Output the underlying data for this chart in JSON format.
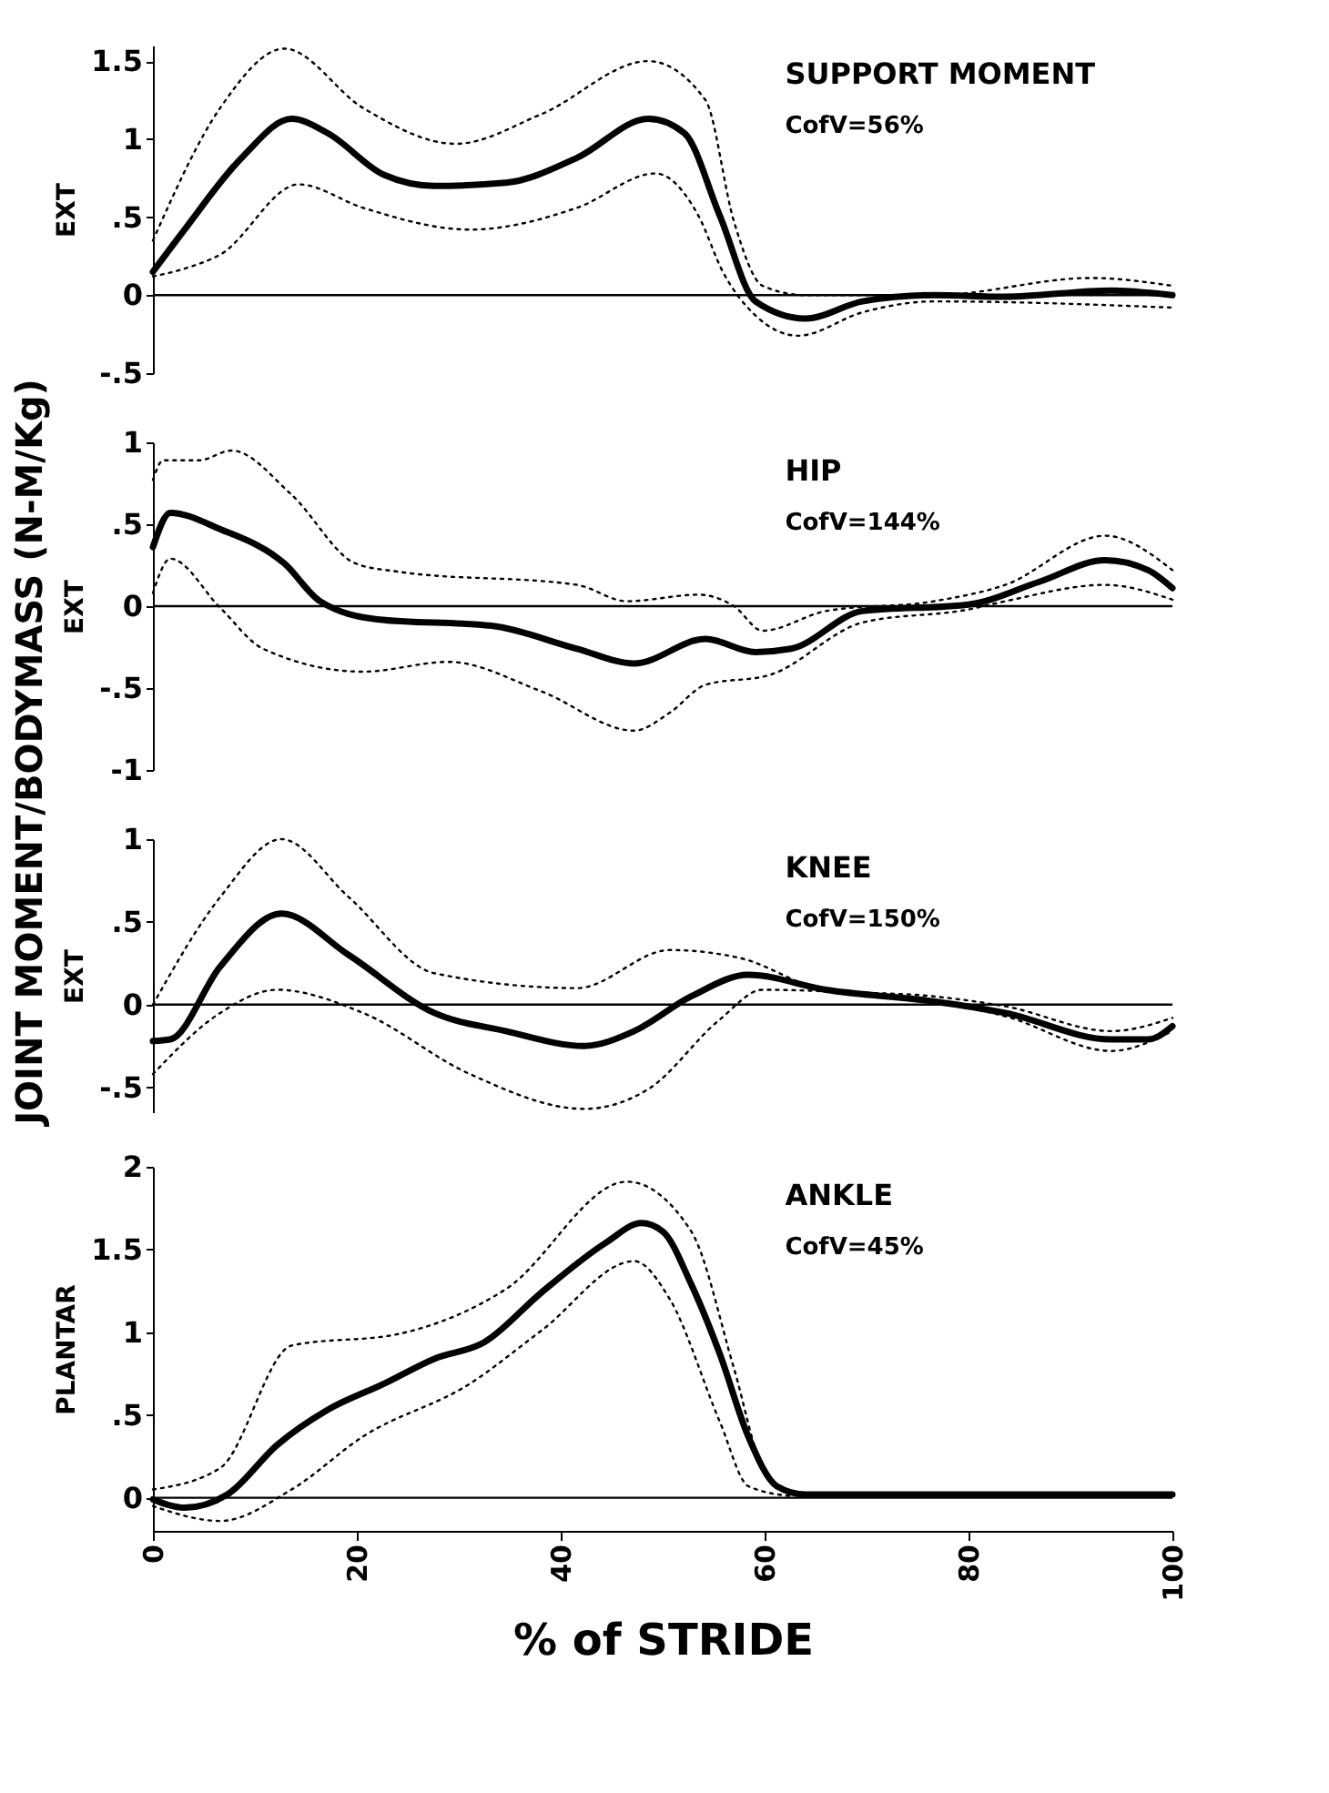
{
  "chart_data": [
    {
      "type": "line",
      "ylabel": "EXT",
      "annotations": [
        "SUPPORT MOMENT",
        "CofV=56%",
        "JOINT MOMENT/BODYMASS (N-M/Kg)"
      ],
      "xlim": [
        0,
        100
      ],
      "xticks": [
        0,
        20,
        40,
        60,
        80,
        100
      ],
      "ylim": [
        -0.5,
        1.6
      ],
      "yticks": [
        {
          "value": -0.5,
          "label": "-.5"
        },
        0,
        {
          "value": 0.5,
          "label": ".5"
        },
        1,
        1.5
      ],
      "tick_labels": "y",
      "grid": false,
      "ref_lines": [
        {
          "axis": "y",
          "value": 0,
          "color": "#000000"
        }
      ],
      "series": [
        {
          "color": "#000000",
          "line_style": "solid",
          "x": [
            0,
            3.1,
            8.7,
            13.6,
            17.1,
            22.7,
            27.6,
            34.6,
            41.6,
            48.6,
            52.1,
            55.6,
            59.1,
            64,
            69.6,
            76.6,
            83.6,
            94,
            100
          ],
          "values": [
            0.15,
            0.42,
            0.88,
            1.13,
            1.04,
            0.77,
            0.7,
            0.72,
            0.88,
            1.13,
            1.04,
            0.51,
            -0.04,
            -0.15,
            -0.04,
            0,
            -0.01,
            0.03,
            0
          ]
        },
        {
          "color": "#000000",
          "line_style": "dotted",
          "x": [
            0,
            6.6,
            12.9,
            20.6,
            29.7,
            38.1,
            48.6,
            54.2,
            57,
            59.8,
            64,
            76.6,
            92,
            100
          ],
          "values": [
            0.35,
            1.2,
            1.58,
            1.2,
            0.97,
            1.16,
            1.5,
            1.25,
            0.47,
            0.06,
            0,
            0,
            0.11,
            0.06
          ]
        },
        {
          "color": "#000000",
          "line_style": "dotted",
          "x": [
            0,
            3.1,
            6.6,
            14.3,
            20.6,
            31.1,
            41.6,
            49.3,
            53.5,
            55.9,
            59.1,
            63.3,
            69.6,
            76.6,
            100
          ],
          "values": [
            0.12,
            0.17,
            0.26,
            0.71,
            0.56,
            0.42,
            0.56,
            0.78,
            0.51,
            0.15,
            -0.13,
            -0.26,
            -0.11,
            -0.04,
            -0.08
          ]
        }
      ]
    },
    {
      "type": "line",
      "ylabel": "EXT",
      "annotations": [
        "HIP",
        "CofV=144%"
      ],
      "xlim": [
        0,
        100
      ],
      "xticks": [
        0,
        20,
        40,
        60,
        80,
        100
      ],
      "ylim": [
        -1,
        1
      ],
      "yticks": [
        -1,
        {
          "value": -0.5,
          "label": "-.5"
        },
        0,
        {
          "value": 0.5,
          "label": ".5"
        },
        1
      ],
      "tick_labels": "y",
      "grid": false,
      "ref_lines": [
        {
          "axis": "y",
          "value": 0,
          "color": "#000000"
        }
      ],
      "series": [
        {
          "color": "#000000",
          "line_style": "solid",
          "x": [
            0,
            1.7,
            6.6,
            12.9,
            16.4,
            22,
            33.2,
            41.6,
            47.2,
            54.2,
            59.1,
            62.6,
            69.6,
            80,
            87,
            93.4,
            97.6,
            100
          ],
          "values": [
            0.36,
            0.57,
            0.47,
            0.26,
            0.03,
            -0.08,
            -0.12,
            -0.26,
            -0.35,
            -0.2,
            -0.28,
            -0.26,
            -0.03,
            0.01,
            0.15,
            0.28,
            0.22,
            0.11
          ]
        },
        {
          "color": "#000000",
          "line_style": "dotted",
          "x": [
            0,
            1,
            4.5,
            7.7,
            13.6,
            19.9,
            24.1,
            41.6,
            46.5,
            53.5,
            57,
            59.8,
            66,
            76.6,
            83.6,
            93.4,
            100
          ],
          "values": [
            0.77,
            0.89,
            0.89,
            0.95,
            0.68,
            0.26,
            0.21,
            0.13,
            0.03,
            0.07,
            0,
            -0.15,
            -0.03,
            0.03,
            0.13,
            0.43,
            0.22
          ]
        },
        {
          "color": "#000000",
          "line_style": "dotted",
          "x": [
            0,
            1.7,
            6.6,
            10.8,
            20.6,
            29,
            38.1,
            47.2,
            50.7,
            54.2,
            60.5,
            69.6,
            80,
            83.6,
            93.4,
            100
          ],
          "values": [
            0.08,
            0.29,
            -0.01,
            -0.26,
            -0.4,
            -0.34,
            -0.52,
            -0.76,
            -0.65,
            -0.48,
            -0.42,
            -0.1,
            -0.02,
            0.03,
            0.13,
            0.04
          ]
        }
      ]
    },
    {
      "type": "line",
      "ylabel": "EXT",
      "annotations": [
        "KNEE",
        "CofV=150%"
      ],
      "xlim": [
        0,
        100
      ],
      "xticks": [
        0,
        20,
        40,
        60,
        80,
        100
      ],
      "ylim": [
        -0.65,
        1
      ],
      "yticks": [
        {
          "value": -0.5,
          "label": "-.5"
        },
        0,
        {
          "value": 0.5,
          "label": ".5"
        },
        1
      ],
      "tick_labels": "y",
      "grid": false,
      "ref_lines": [
        {
          "axis": "y",
          "value": 0,
          "color": "#000000"
        }
      ],
      "series": [
        {
          "color": "#000000",
          "line_style": "solid",
          "x": [
            0,
            1.7,
            6.6,
            12.6,
            19.2,
            27.6,
            34.6,
            42.3,
            47.2,
            52.8,
            58.4,
            66,
            76.6,
            83.6,
            94,
            97.6,
            100
          ],
          "values": [
            -0.22,
            -0.21,
            0.23,
            0.55,
            0.3,
            -0.05,
            -0.16,
            -0.25,
            -0.16,
            0.05,
            0.18,
            0.09,
            0.02,
            -0.05,
            -0.21,
            -0.21,
            -0.13
          ]
        },
        {
          "color": "#000000",
          "line_style": "dotted",
          "x": [
            0,
            6.6,
            12.6,
            19.2,
            27.6,
            41.6,
            50.7,
            57.7,
            66,
            76.6,
            83.6,
            94,
            100
          ],
          "values": [
            0,
            0.65,
            1.0,
            0.65,
            0.19,
            0.1,
            0.33,
            0.28,
            0.09,
            0.05,
            -0.01,
            -0.16,
            -0.08
          ]
        },
        {
          "color": "#000000",
          "line_style": "dotted",
          "x": [
            0,
            6.6,
            12.2,
            20.6,
            31.1,
            42.3,
            48.6,
            55.6,
            59.8,
            66,
            76.6,
            83.6,
            94,
            100
          ],
          "values": [
            -0.42,
            -0.05,
            0.09,
            -0.05,
            -0.42,
            -0.63,
            -0.51,
            -0.09,
            0.09,
            0.08,
            0.02,
            -0.07,
            -0.28,
            -0.16
          ]
        }
      ]
    },
    {
      "type": "line",
      "ylabel": "PLANTAR",
      "xlabel": "% of STRIDE",
      "annotations": [
        "ANKLE",
        "CofV=45%"
      ],
      "xlim": [
        0,
        100
      ],
      "xticks": [
        0,
        20,
        40,
        60,
        80,
        100
      ],
      "ylim": [
        -0.2,
        2
      ],
      "yticks": [
        0,
        {
          "value": 0.5,
          "label": ".5"
        },
        1,
        {
          "value": 1.5,
          "label": "1.5"
        },
        2
      ],
      "grid": false,
      "ref_lines": [
        {
          "axis": "y",
          "value": 0,
          "color": "#000000"
        }
      ],
      "series": [
        {
          "color": "#000000",
          "line_style": "solid",
          "x": [
            0,
            3.1,
            7.3,
            12.2,
            17.1,
            22.7,
            27.6,
            32.5,
            38.1,
            44.4,
            47.9,
            50,
            52.8,
            55.6,
            58.4,
            61.2,
            64,
            100
          ],
          "values": [
            -0.01,
            -0.06,
            0.02,
            0.32,
            0.53,
            0.69,
            0.84,
            0.94,
            1.24,
            1.54,
            1.66,
            1.61,
            1.29,
            0.87,
            0.37,
            0.07,
            0.02,
            0.02
          ]
        },
        {
          "color": "#000000",
          "line_style": "dotted",
          "x": [
            0,
            6.6,
            13.6,
            24.1,
            34.6,
            46.5,
            52.8,
            57,
            59.8,
            62.6
          ],
          "values": [
            0.05,
            0.18,
            0.92,
            0.99,
            1.26,
            1.91,
            1.61,
            0.78,
            0.18,
            0.02
          ]
        },
        {
          "color": "#000000",
          "line_style": "dotted",
          "x": [
            0,
            6.6,
            13.6,
            20.6,
            31.1,
            38.1,
            47.2,
            50.7,
            55.6,
            58.4,
            62.6
          ],
          "values": [
            -0.05,
            -0.14,
            0.05,
            0.37,
            0.69,
            1.01,
            1.43,
            1.2,
            0.46,
            0.07,
            0.01
          ]
        }
      ]
    }
  ]
}
